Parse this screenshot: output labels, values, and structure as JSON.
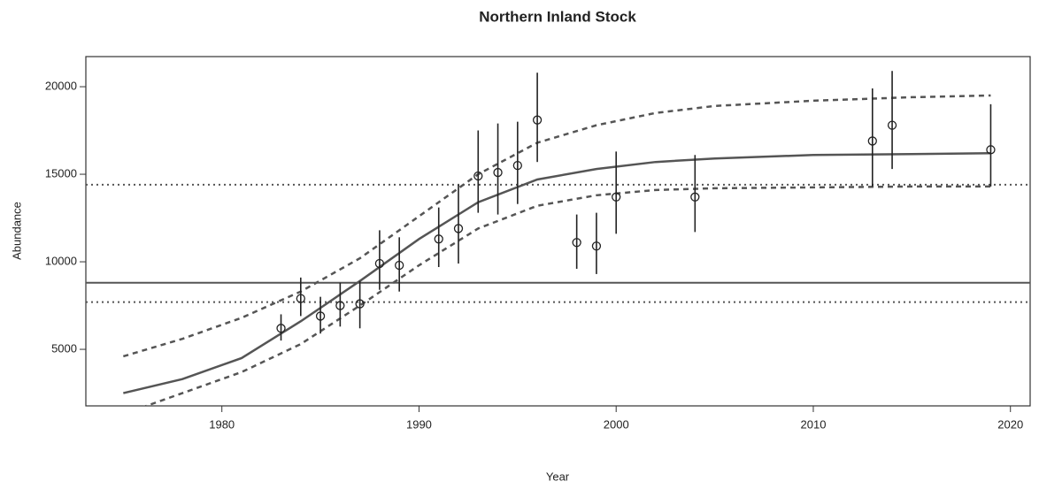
{
  "chart_data": {
    "type": "line",
    "title": "Northern Inland Stock",
    "xlabel": "Year",
    "ylabel": "Abundance",
    "xlim": [
      1973.1,
      2021.0
    ],
    "ylim": [
      1770,
      21720
    ],
    "xticks": [
      1980,
      1990,
      2000,
      2010,
      2020
    ],
    "yticks": [
      5000,
      10000,
      15000,
      20000
    ],
    "color": "#555555",
    "points": {
      "x": [
        1983,
        1984,
        1985,
        1986,
        1987,
        1988,
        1989,
        1991,
        1992,
        1993,
        1994,
        1995,
        1996,
        1998,
        1999,
        2000,
        2004,
        2013,
        2014,
        2019
      ],
      "values": [
        6200,
        7900,
        6900,
        7500,
        7600,
        9900,
        9800,
        11300,
        11900,
        14900,
        15100,
        15500,
        18100,
        11100,
        10900,
        13700,
        13700,
        16900,
        17800,
        16400
      ],
      "lower": [
        5500,
        6900,
        5900,
        6300,
        6200,
        8400,
        8300,
        9700,
        9900,
        12800,
        12700,
        13300,
        15700,
        9600,
        9300,
        11600,
        11700,
        14300,
        15300,
        14300
      ],
      "upper": [
        7000,
        9100,
        8000,
        8800,
        8900,
        11800,
        11400,
        13100,
        14400,
        17500,
        17900,
        18000,
        20800,
        12700,
        12800,
        16300,
        16100,
        19900,
        20900,
        19000
      ]
    },
    "curves": [
      {
        "style": "solid",
        "x": [
          1975,
          1978,
          1981,
          1984,
          1987,
          1990,
          1993,
          1996,
          1999,
          2002,
          2005,
          2010,
          2015,
          2019
        ],
        "values": [
          2500,
          3300,
          4500,
          6600,
          8900,
          11300,
          13400,
          14700,
          15300,
          15700,
          15900,
          16100,
          16150,
          16200
        ]
      },
      {
        "style": "dashed",
        "x": [
          1975,
          1978,
          1981,
          1984,
          1987,
          1990,
          1993,
          1996,
          1999,
          2002,
          2005,
          2010,
          2015,
          2019
        ],
        "values": [
          4600,
          5600,
          6800,
          8300,
          10200,
          12600,
          15000,
          16800,
          17800,
          18500,
          18900,
          19200,
          19400,
          19500
        ]
      },
      {
        "style": "dashed",
        "x": [
          1975,
          1978,
          1981,
          1984,
          1987,
          1990,
          1993,
          1996,
          1999,
          2002,
          2005,
          2010,
          2015,
          2019
        ],
        "values": [
          1300,
          2500,
          3700,
          5300,
          7500,
          9800,
          11900,
          13200,
          13800,
          14100,
          14200,
          14250,
          14300,
          14300
        ]
      }
    ],
    "hlines": [
      {
        "value": 8800,
        "style": "solid"
      },
      {
        "value": 14400,
        "style": "dotted"
      },
      {
        "value": 7700,
        "style": "dotted"
      }
    ]
  }
}
